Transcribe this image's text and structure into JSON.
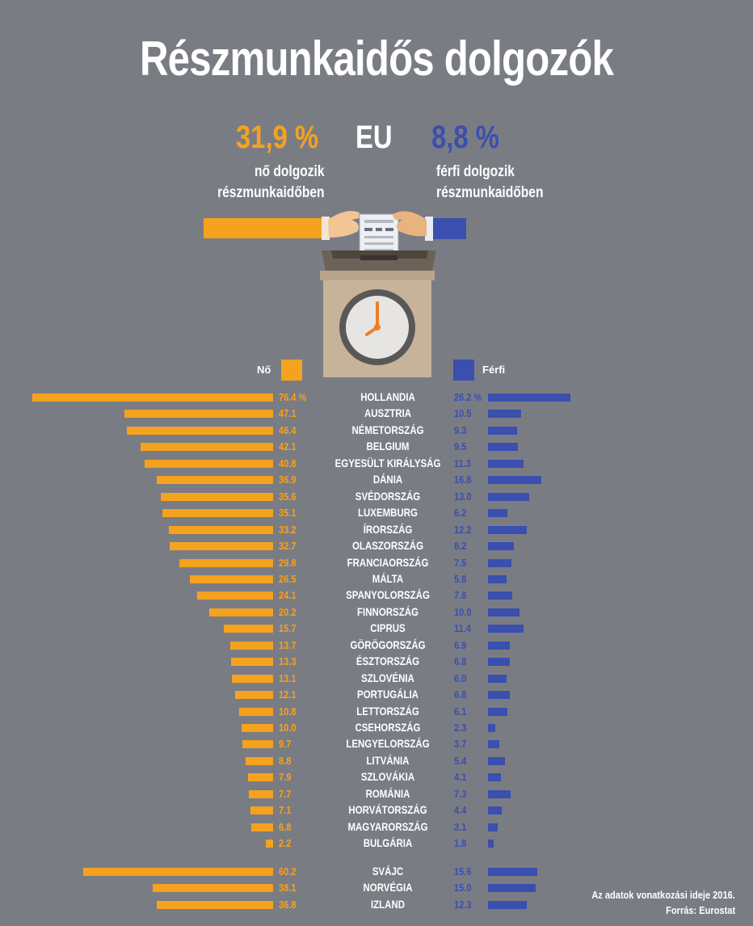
{
  "title": "Részmunkaidős dolgozók",
  "summary": {
    "women_pct": "31,9 %",
    "eu_label": "EU",
    "men_pct": "8,8 %",
    "women_desc_line1": "nő dolgozik",
    "women_desc_line2": "részmunkaidőben",
    "men_desc_line1": "férfi dolgozik",
    "men_desc_line2": "részmunkaidőben"
  },
  "legend": {
    "women": "Nő",
    "men": "Férfi"
  },
  "colors": {
    "women": "#f5a21f",
    "men": "#3a4fae",
    "background": "#7a7c84"
  },
  "chart_data": {
    "type": "bar",
    "orientation": "horizontal-diverging",
    "series": [
      {
        "name": "Nő",
        "values": [
          76.4,
          47.1,
          46.4,
          42.1,
          40.8,
          36.9,
          35.6,
          35.1,
          33.2,
          32.7,
          29.8,
          26.5,
          24.1,
          20.2,
          15.7,
          13.7,
          13.3,
          13.1,
          12.1,
          10.8,
          10.0,
          9.7,
          8.8,
          7.9,
          7.7,
          7.1,
          6.8,
          2.2,
          60.2,
          38.1,
          36.8
        ]
      },
      {
        "name": "Férfi",
        "values": [
          26.2,
          10.5,
          9.3,
          9.5,
          11.3,
          16.8,
          13.0,
          6.2,
          12.2,
          8.2,
          7.5,
          5.8,
          7.6,
          10.0,
          11.4,
          6.9,
          6.8,
          6.0,
          6.8,
          6.1,
          2.3,
          3.7,
          5.4,
          4.1,
          7.3,
          4.4,
          3.1,
          1.8,
          15.6,
          15.0,
          12.3
        ]
      }
    ],
    "categories": [
      "HOLLANDIA",
      "AUSZTRIA",
      "NÉMETORSZÁG",
      "BELGIUM",
      "EGYESÜLT KIRÁLYSÁG",
      "DÁNIA",
      "SVÉDORSZÁG",
      "LUXEMBURG",
      "ÍRORSZÁG",
      "OLASZORSZÁG",
      "FRANCIAORSZÁG",
      "MÁLTA",
      "SPANYOLORSZÁG",
      "FINNORSZÁG",
      "CIPRUS",
      "GÖRÖGORSZÁG",
      "ÉSZTORSZÁG",
      "SZLOVÉNIA",
      "PORTUGÁLIA",
      "LETTORSZÁG",
      "CSEHORSZÁG",
      "LENGYELORSZÁG",
      "LITVÁNIA",
      "SZLOVÁKIA",
      "ROMÁNIA",
      "HORVÁTORSZÁG",
      "MAGYARORSZÁG",
      "BULGÁRIA",
      "SVÁJC",
      "NORVÉGIA",
      "IZLAND"
    ],
    "value_labels_women": [
      "76.4 %",
      "47.1",
      "46.4",
      "42.1",
      "40.8",
      "36.9",
      "35.6",
      "35.1",
      "33.2",
      "32.7",
      "29.8",
      "26.5",
      "24.1",
      "20.2",
      "15.7",
      "13.7",
      "13.3",
      "13.1",
      "12.1",
      "10.8",
      "10.0",
      "9.7",
      "8.8",
      "7.9",
      "7.7",
      "7.1",
      "6.8",
      "2.2",
      "60.2",
      "38.1",
      "36.8"
    ],
    "value_labels_men": [
      "26.2 %",
      "10.5",
      "9.3",
      "9.5",
      "11.3",
      "16.8",
      "13.0",
      "6.2",
      "12.2",
      "8.2",
      "7.5",
      "5.8",
      "7.6",
      "10.0",
      "11.4",
      "6.9",
      "6.8",
      "6.0",
      "6.8",
      "6.1",
      "2.3",
      "3.7",
      "5.4",
      "4.1",
      "7.3",
      "4.4",
      "3.1",
      "1.8",
      "15.6",
      "15.0",
      "12.3"
    ]
  },
  "footnote": {
    "line1": "Az adatok vonatkozási ideje 2016.",
    "line2": "Forrás: Eurostat"
  }
}
